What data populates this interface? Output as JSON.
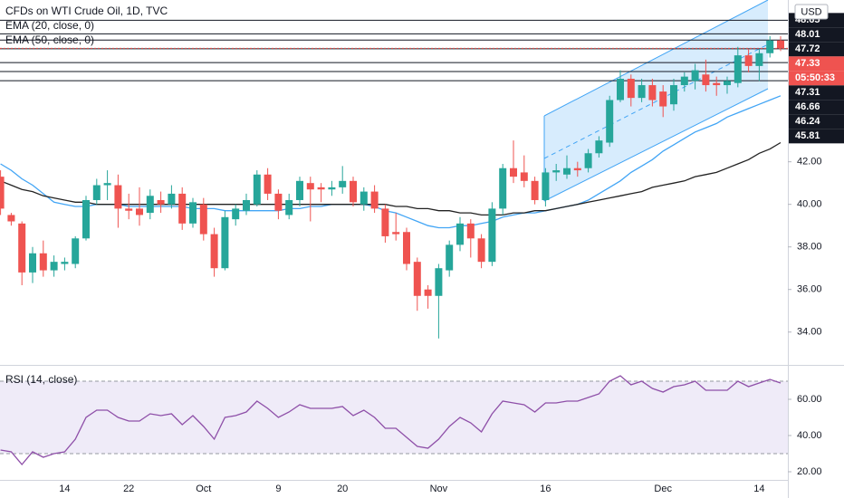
{
  "chart_data": {
    "type": "candlestick",
    "title": "CFDs on WTI Crude Oil, 1D, TVC",
    "currency": "USD",
    "categories": [
      null,
      null,
      null,
      null,
      null,
      null,
      "14",
      null,
      null,
      null,
      null,
      null,
      "22",
      null,
      null,
      null,
      null,
      null,
      null,
      "Oct",
      null,
      null,
      null,
      null,
      null,
      null,
      "9",
      null,
      null,
      null,
      null,
      null,
      "20",
      null,
      null,
      null,
      null,
      null,
      null,
      null,
      null,
      "Nov",
      null,
      null,
      null,
      null,
      null,
      null,
      null,
      null,
      null,
      "16",
      null,
      null,
      null,
      null,
      null,
      null,
      null,
      null,
      null,
      null,
      "Dec",
      null,
      null,
      null,
      null,
      null,
      null,
      null,
      null,
      "14",
      null,
      null
    ],
    "open": [
      41.3,
      39.5,
      39.1,
      36.8,
      37.7,
      36.9,
      37.2,
      37.2,
      38.4,
      40.2,
      40.9,
      40.9,
      39.8,
      39.8,
      39.6,
      40.2,
      40.0,
      40.5,
      39.1,
      40.0,
      38.6,
      37.0,
      39.3,
      39.7,
      40.0,
      41.4,
      40.5,
      39.5,
      40.2,
      41.0,
      40.8,
      40.7,
      40.8,
      41.1,
      40.0,
      40.6,
      39.8,
      38.7,
      38.7,
      37.3,
      36.0,
      35.7,
      36.9,
      38.1,
      39.1,
      38.4,
      37.3,
      39.8,
      41.7,
      41.5,
      41.1,
      40.2,
      41.5,
      41.4,
      41.7,
      41.7,
      42.4,
      42.9,
      44.9,
      45.9,
      45.0,
      45.6,
      45.3,
      44.7,
      45.6,
      45.8,
      46.1,
      45.7,
      45.6,
      45.7,
      47.0,
      46.5,
      47.1,
      47.7
    ],
    "high": [
      41.6,
      39.6,
      39.2,
      38.0,
      38.3,
      37.6,
      37.5,
      38.5,
      40.4,
      41.2,
      41.6,
      41.4,
      40.5,
      40.8,
      40.7,
      40.6,
      40.9,
      40.8,
      40.3,
      40.3,
      38.9,
      39.7,
      40.0,
      40.5,
      41.6,
      41.7,
      40.7,
      40.5,
      41.3,
      41.3,
      41.0,
      41.1,
      41.8,
      41.3,
      40.8,
      40.9,
      40.0,
      39.6,
      38.9,
      37.5,
      36.2,
      37.2,
      38.3,
      39.4,
      39.3,
      38.6,
      40.1,
      41.9,
      43.0,
      42.3,
      41.3,
      41.7,
      41.9,
      42.3,
      42.0,
      42.6,
      43.2,
      45.1,
      46.3,
      46.1,
      45.9,
      45.9,
      45.6,
      45.9,
      46.2,
      46.6,
      46.8,
      46.0,
      46.0,
      47.4,
      47.3,
      47.3,
      47.9,
      47.9
    ],
    "low": [
      39.5,
      39.0,
      36.2,
      36.3,
      36.6,
      36.6,
      36.9,
      37.0,
      38.3,
      40.0,
      40.2,
      38.9,
      39.3,
      39.0,
      39.3,
      39.6,
      39.8,
      38.8,
      38.9,
      38.3,
      36.6,
      36.9,
      39.0,
      39.5,
      39.9,
      40.2,
      39.3,
      39.3,
      39.9,
      39.2,
      40.1,
      40.4,
      40.5,
      39.9,
      39.7,
      39.6,
      38.2,
      38.3,
      36.9,
      35.0,
      35.1,
      33.7,
      36.6,
      37.8,
      37.5,
      37.0,
      37.1,
      39.5,
      41.0,
      40.8,
      40.0,
      39.9,
      41.1,
      41.2,
      41.3,
      41.5,
      42.2,
      42.7,
      44.8,
      44.6,
      44.8,
      44.6,
      44.1,
      44.4,
      45.3,
      45.4,
      45.3,
      45.1,
      45.2,
      45.5,
      46.2,
      45.8,
      46.9,
      47.2
    ],
    "close": [
      39.8,
      39.2,
      36.8,
      37.7,
      36.9,
      37.3,
      37.3,
      38.4,
      40.2,
      40.9,
      41.0,
      39.8,
      39.7,
      39.5,
      40.4,
      40.0,
      40.5,
      39.1,
      40.1,
      38.6,
      37.0,
      39.4,
      39.8,
      40.2,
      41.4,
      40.5,
      39.7,
      40.2,
      41.1,
      40.7,
      40.7,
      40.8,
      41.1,
      40.1,
      40.6,
      39.8,
      38.5,
      38.6,
      37.2,
      35.7,
      35.7,
      37.0,
      38.1,
      39.1,
      38.4,
      37.3,
      39.8,
      41.7,
      41.3,
      41.1,
      40.2,
      41.5,
      41.6,
      41.7,
      41.6,
      42.4,
      43.0,
      44.9,
      45.9,
      45.0,
      45.6,
      44.9,
      44.6,
      45.6,
      46.0,
      46.3,
      45.6,
      45.6,
      45.8,
      47.0,
      46.5,
      47.1,
      47.7,
      47.33
    ],
    "up_color": "#26a69a",
    "down_color": "#ef5350",
    "ylim": [
      32.5,
      49.6
    ],
    "yticks": [
      {
        "value": 34,
        "label": "34.00"
      },
      {
        "value": 36,
        "label": "36.00"
      },
      {
        "value": 38,
        "label": "38.00"
      },
      {
        "value": 40,
        "label": "40.00"
      },
      {
        "value": 42,
        "label": "42.00"
      }
    ],
    "overlays": [
      {
        "name": "EMA (20, close, 0)",
        "color": "#42a5f5",
        "values": [
          41.9,
          41.6,
          41.2,
          40.9,
          40.5,
          40.1,
          40.0,
          39.9,
          39.9,
          40.0,
          40.0,
          40.0,
          39.9,
          39.9,
          39.9,
          39.9,
          39.9,
          39.9,
          39.8,
          39.8,
          39.8,
          39.7,
          39.7,
          39.7,
          39.7,
          39.7,
          39.7,
          39.8,
          39.8,
          39.9,
          39.9,
          40.0,
          40.0,
          40.0,
          40.0,
          39.9,
          39.7,
          39.6,
          39.4,
          39.2,
          39.0,
          38.9,
          38.9,
          39.0,
          39.0,
          39.1,
          39.2,
          39.4,
          39.5,
          39.6,
          39.6,
          39.7,
          39.8,
          39.9,
          40.0,
          40.2,
          40.5,
          40.8,
          41.1,
          41.5,
          41.8,
          42.1,
          42.5,
          42.8,
          43.1,
          43.4,
          43.6,
          43.8,
          44.1,
          44.3,
          44.5,
          44.7,
          44.9,
          45.1
        ]
      },
      {
        "name": "EMA (50, close, 0)",
        "color": "#222222",
        "values": [
          41.1,
          40.9,
          40.7,
          40.6,
          40.4,
          40.3,
          40.2,
          40.1,
          40.1,
          40.0,
          40.0,
          40.0,
          40.0,
          40.0,
          40.0,
          40.0,
          40.0,
          40.0,
          40.0,
          40.0,
          40.0,
          40.0,
          40.0,
          40.0,
          40.0,
          40.0,
          40.0,
          40.0,
          40.0,
          40.0,
          40.0,
          40.0,
          40.0,
          40.0,
          40.0,
          40.0,
          40.0,
          39.9,
          39.9,
          39.8,
          39.8,
          39.7,
          39.7,
          39.6,
          39.6,
          39.5,
          39.5,
          39.5,
          39.6,
          39.6,
          39.7,
          39.7,
          39.8,
          39.9,
          40.0,
          40.1,
          40.2,
          40.3,
          40.4,
          40.5,
          40.6,
          40.8,
          40.9,
          41.0,
          41.1,
          41.3,
          41.4,
          41.5,
          41.7,
          41.9,
          42.1,
          42.4,
          42.6,
          42.9
        ]
      }
    ],
    "levels": [
      48.65,
      48.01,
      47.72,
      47.31,
      46.66,
      46.24,
      45.81
    ],
    "last_price": 47.33,
    "countdown": "05:50:33",
    "indicator": {
      "name": "RSI (14, close)",
      "color": "#8e4fa8",
      "values": [
        32,
        31,
        24,
        31,
        28,
        30,
        31,
        38,
        50,
        54,
        54,
        50,
        48,
        48,
        52,
        51,
        52,
        46,
        51,
        45,
        38,
        50,
        51,
        53,
        59,
        55,
        50,
        53,
        57,
        55,
        55,
        55,
        56,
        51,
        54,
        50,
        44,
        44,
        39,
        34,
        33,
        38,
        45,
        50,
        47,
        42,
        52,
        59,
        58,
        57,
        53,
        58,
        58,
        59,
        59,
        61,
        63,
        70,
        73,
        68,
        70,
        66,
        64,
        67,
        68,
        70,
        65,
        65,
        65,
        70,
        67,
        69,
        71,
        69
      ],
      "ylim": [
        15.5,
        78.5
      ],
      "yticks": [
        {
          "value": 20,
          "label": "20.00"
        },
        {
          "value": 40,
          "label": "40.00"
        },
        {
          "value": 60,
          "label": "60.00"
        }
      ],
      "band": [
        30,
        70
      ]
    }
  }
}
